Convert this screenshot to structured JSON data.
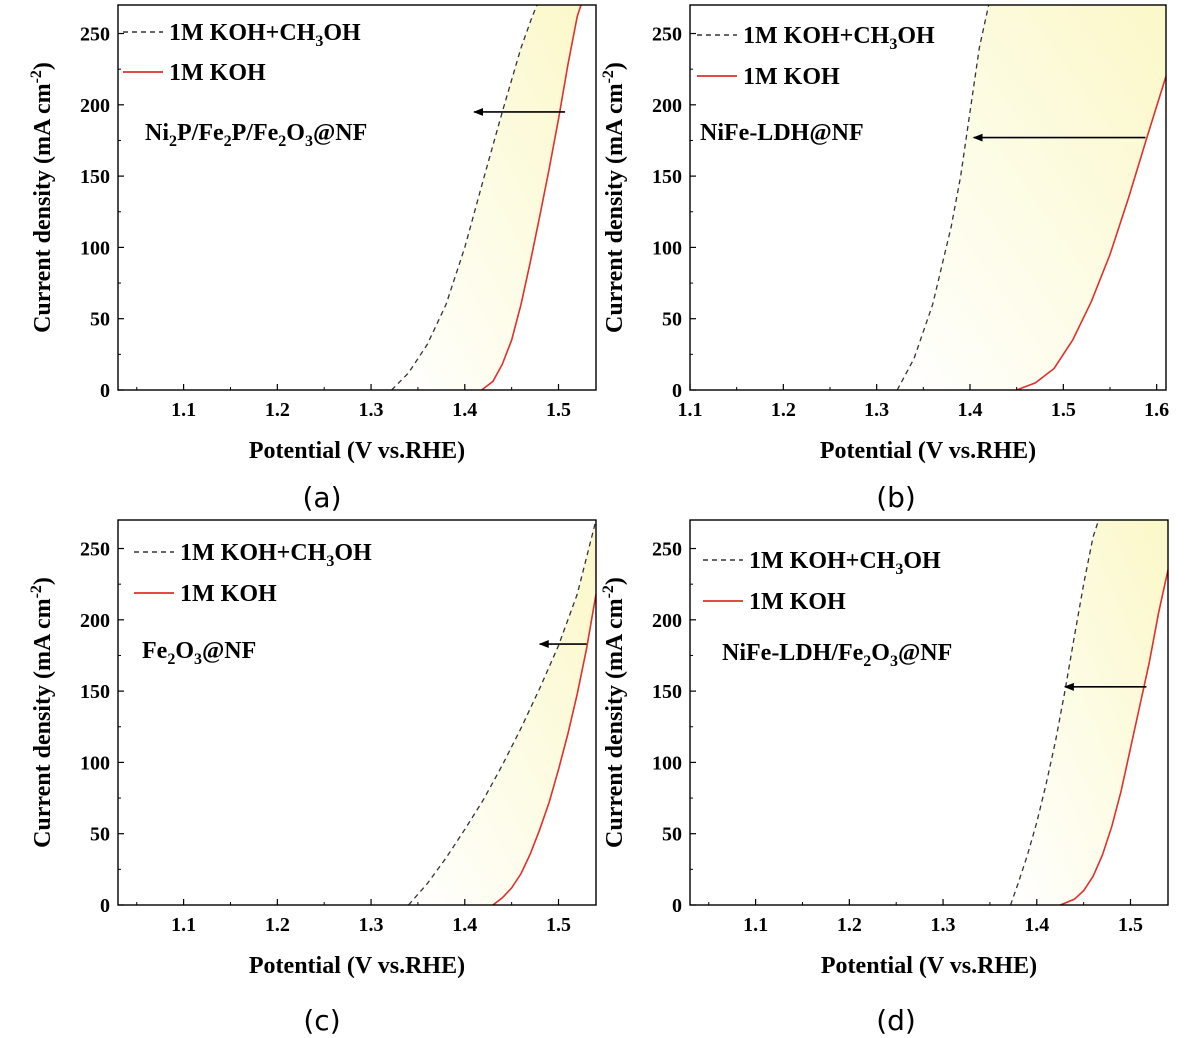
{
  "colors": {
    "methanol_line": "#333333",
    "koh_line": "#e0302a",
    "fill_start": "#ffffff",
    "fill_end": "#fbf8c8",
    "arrow": "#000000"
  },
  "chart_data": [
    {
      "type": "line",
      "panel_label": "(a)",
      "sample_parts": [
        [
          "Ni",
          ""
        ],
        [
          "2",
          "sub"
        ],
        [
          "P/Fe",
          ""
        ],
        [
          "2",
          "sub"
        ],
        [
          "P/Fe",
          ""
        ],
        [
          "2",
          "sub"
        ],
        [
          "O",
          ""
        ],
        [
          "3",
          "sub"
        ],
        [
          "@NF",
          ""
        ]
      ],
      "xlabel": "Potential (V vs.RHE)",
      "ylabel_main": "Current density  (mA cm",
      "ylabel_sup": "-2",
      "ylabel_end": ")",
      "xlim": [
        1.03,
        1.54
      ],
      "ylim": [
        0,
        270
      ],
      "xticks": [
        1.1,
        1.2,
        1.3,
        1.4,
        1.5
      ],
      "xtick_labels": [
        "1.1",
        "1.2",
        "1.3",
        "1.4",
        "1.5"
      ],
      "yticks": [
        0,
        50,
        100,
        150,
        200,
        250
      ],
      "ytick_labels": [
        "0",
        "50",
        "100",
        "150",
        "200",
        "250"
      ],
      "legend": [
        {
          "name_parts": [
            [
              "1M KOH+CH",
              ""
            ],
            [
              "3",
              "sub"
            ],
            [
              "OH",
              ""
            ]
          ],
          "style": "dashed"
        },
        {
          "name_parts": [
            [
              "1M KOH",
              ""
            ]
          ],
          "style": "solid"
        }
      ],
      "series": [
        {
          "name": "1M KOH+CH3OH",
          "x": [
            1.322,
            1.34,
            1.36,
            1.38,
            1.4,
            1.42,
            1.44,
            1.46,
            1.472,
            1.477
          ],
          "y": [
            0,
            12,
            32,
            60,
            100,
            148,
            195,
            240,
            262,
            270
          ]
        },
        {
          "name": "1M KOH",
          "x": [
            1.418,
            1.43,
            1.44,
            1.45,
            1.46,
            1.47,
            1.48,
            1.49,
            1.5,
            1.51,
            1.52,
            1.524
          ],
          "y": [
            0,
            6,
            18,
            35,
            60,
            90,
            122,
            155,
            190,
            228,
            262,
            270
          ]
        }
      ],
      "arrow": {
        "x_from": 1.507,
        "x_to": 1.41,
        "y": 195
      }
    },
    {
      "type": "line",
      "panel_label": "(b)",
      "sample_parts": [
        [
          "NiFe-LDH@NF",
          ""
        ]
      ],
      "xlabel": "Potential (V vs.RHE)",
      "ylabel_main": "Current density  (mA cm",
      "ylabel_sup": "-2",
      "ylabel_end": ")",
      "xlim": [
        1.1,
        1.61
      ],
      "ylim": [
        0,
        270
      ],
      "xticks": [
        1.1,
        1.2,
        1.3,
        1.4,
        1.5,
        1.6
      ],
      "xtick_labels": [
        "1.1",
        "1.2",
        "1.3",
        "1.4",
        "1.5",
        "1.6"
      ],
      "yticks": [
        0,
        50,
        100,
        150,
        200,
        250
      ],
      "ytick_labels": [
        "0",
        "50",
        "100",
        "150",
        "200",
        "250"
      ],
      "legend": [
        {
          "name_parts": [
            [
              "1M KOH+CH",
              ""
            ],
            [
              "3",
              "sub"
            ],
            [
              "OH",
              ""
            ]
          ],
          "style": "dashed"
        },
        {
          "name_parts": [
            [
              "1M KOH",
              ""
            ]
          ],
          "style": "solid"
        }
      ],
      "series": [
        {
          "name": "1M KOH+CH3OH",
          "x": [
            1.322,
            1.34,
            1.36,
            1.38,
            1.39,
            1.4,
            1.41,
            1.42
          ],
          "y": [
            0,
            22,
            60,
            115,
            150,
            195,
            240,
            270
          ]
        },
        {
          "name": "1M KOH",
          "x": [
            1.45,
            1.47,
            1.49,
            1.51,
            1.53,
            1.55,
            1.57,
            1.59,
            1.61
          ],
          "y": [
            0,
            5,
            15,
            35,
            62,
            95,
            135,
            178,
            220
          ]
        }
      ],
      "arrow": {
        "x_from": 1.588,
        "x_to": 1.404,
        "y": 177
      }
    },
    {
      "type": "line",
      "panel_label": "(c)",
      "sample_parts": [
        [
          "Fe",
          ""
        ],
        [
          "2",
          "sub"
        ],
        [
          "O",
          ""
        ],
        [
          "3",
          "sub"
        ],
        [
          "@NF",
          ""
        ]
      ],
      "xlabel": "Potential (V vs.RHE)",
      "ylabel_main": "Current density  (mA cm",
      "ylabel_sup": "-2",
      "ylabel_end": ")",
      "xlim": [
        1.03,
        1.54
      ],
      "ylim": [
        0,
        270
      ],
      "xticks": [
        1.1,
        1.2,
        1.3,
        1.4,
        1.5
      ],
      "xtick_labels": [
        "1.1",
        "1.2",
        "1.3",
        "1.4",
        "1.5"
      ],
      "yticks": [
        0,
        50,
        100,
        150,
        200,
        250
      ],
      "ytick_labels": [
        "0",
        "50",
        "100",
        "150",
        "200",
        "250"
      ],
      "legend": [
        {
          "name_parts": [
            [
              "1M KOH+CH",
              ""
            ],
            [
              "3",
              "sub"
            ],
            [
              "OH",
              ""
            ]
          ],
          "style": "dashed"
        },
        {
          "name_parts": [
            [
              "1M KOH",
              ""
            ]
          ],
          "style": "solid"
        }
      ],
      "series": [
        {
          "name": "1M KOH+CH3OH",
          "x": [
            1.34,
            1.36,
            1.38,
            1.4,
            1.42,
            1.44,
            1.46,
            1.48,
            1.5,
            1.52,
            1.54
          ],
          "y": [
            0,
            15,
            33,
            53,
            74,
            98,
            124,
            152,
            182,
            218,
            270
          ]
        },
        {
          "name": "1M KOH",
          "x": [
            1.43,
            1.44,
            1.45,
            1.46,
            1.47,
            1.48,
            1.49,
            1.5,
            1.51,
            1.52,
            1.53,
            1.54
          ],
          "y": [
            0,
            5,
            12,
            22,
            36,
            53,
            72,
            95,
            120,
            148,
            180,
            218
          ]
        }
      ],
      "arrow": {
        "x_from": 1.53,
        "x_to": 1.48,
        "y": 183
      }
    },
    {
      "type": "line",
      "panel_label": "(d)",
      "sample_parts": [
        [
          "NiFe-LDH/Fe",
          ""
        ],
        [
          "2",
          "sub"
        ],
        [
          "O",
          ""
        ],
        [
          "3",
          "sub"
        ],
        [
          "@NF",
          ""
        ]
      ],
      "xlabel": "Potential (V vs.RHE)",
      "ylabel_main": "Current density  (mA cm",
      "ylabel_sup": "-2",
      "ylabel_end": ")",
      "xlim": [
        1.03,
        1.54
      ],
      "ylim": [
        0,
        270
      ],
      "xticks": [
        1.1,
        1.2,
        1.3,
        1.4,
        1.5
      ],
      "xtick_labels": [
        "1.1",
        "1.2",
        "1.3",
        "1.4",
        "1.5"
      ],
      "yticks": [
        0,
        50,
        100,
        150,
        200,
        250
      ],
      "ytick_labels": [
        "0",
        "50",
        "100",
        "150",
        "200",
        "250"
      ],
      "legend": [
        {
          "name_parts": [
            [
              "1M KOH+CH",
              ""
            ],
            [
              "3",
              "sub"
            ],
            [
              "OH",
              ""
            ]
          ],
          "style": "dashed"
        },
        {
          "name_parts": [
            [
              "1M KOH",
              ""
            ]
          ],
          "style": "solid"
        }
      ],
      "series": [
        {
          "name": "1M KOH+CH3OH",
          "x": [
            1.372,
            1.38,
            1.39,
            1.4,
            1.41,
            1.42,
            1.43,
            1.44,
            1.45,
            1.46,
            1.466
          ],
          "y": [
            0,
            15,
            35,
            58,
            85,
            115,
            150,
            188,
            225,
            258,
            270
          ]
        },
        {
          "name": "1M KOH",
          "x": [
            1.425,
            1.44,
            1.45,
            1.46,
            1.47,
            1.48,
            1.49,
            1.5,
            1.51,
            1.52,
            1.53,
            1.54
          ],
          "y": [
            0,
            4,
            10,
            20,
            35,
            55,
            80,
            110,
            140,
            170,
            205,
            235
          ]
        }
      ],
      "arrow": {
        "x_from": 1.517,
        "x_to": 1.43,
        "y": 153
      }
    }
  ]
}
